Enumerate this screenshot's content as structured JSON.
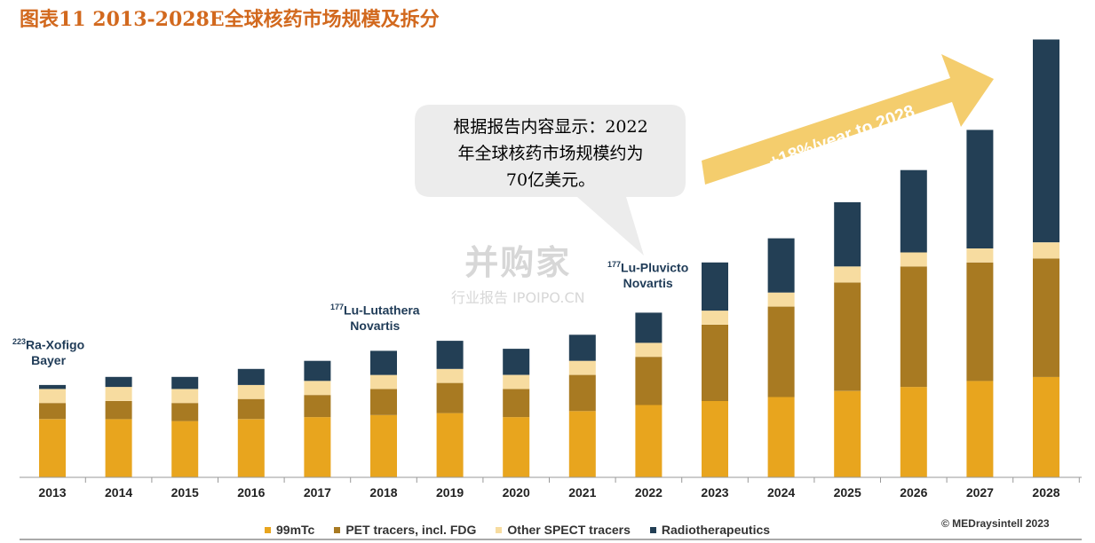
{
  "title": "图表11 2013-2028E全球核药市场规模及拆分",
  "callout": {
    "line1": "根据报告内容显示：2022",
    "line2": "年全球核药市场规模约为",
    "line3": "70亿美元。"
  },
  "arrow_text": "+18%/year to 2028",
  "drug_labels": {
    "xofigo": {
      "sup": "223",
      "name": "Ra-Xofigo",
      "company": "Bayer"
    },
    "lutathera": {
      "sup": "177",
      "name": "Lu-Lutathera",
      "company": "Novartis"
    },
    "pluvicto": {
      "sup": "177",
      "name": "Lu-Pluvicto",
      "company": "Novartis"
    }
  },
  "watermark": {
    "main": "并购家",
    "sub": "行业报告 IPOIPO.CN"
  },
  "copyright": "© MEDraysintell 2023",
  "colors": {
    "99mTc": "#e8a51e",
    "PET": "#a87a22",
    "SPECT": "#f7dca0",
    "Radio": "#233f55",
    "title": "#d2691e",
    "arrow": "#f2c453"
  },
  "chart_data": {
    "type": "bar",
    "stacked": true,
    "categories": [
      "2013",
      "2014",
      "2015",
      "2016",
      "2017",
      "2018",
      "2019",
      "2020",
      "2021",
      "2022",
      "2023",
      "2024",
      "2025",
      "2026",
      "2027",
      "2028"
    ],
    "series": [
      {
        "name": "99mTc",
        "values": [
          2.9,
          2.9,
          2.8,
          2.9,
          3.0,
          3.1,
          3.2,
          3.0,
          3.3,
          3.6,
          3.8,
          4.0,
          4.3,
          4.5,
          4.8,
          5.0
        ]
      },
      {
        "name": "PET tracers, incl. FDG",
        "values": [
          0.8,
          0.9,
          0.9,
          1.0,
          1.1,
          1.3,
          1.5,
          1.4,
          1.8,
          2.4,
          3.8,
          4.5,
          5.4,
          6.0,
          5.9,
          5.9
        ]
      },
      {
        "name": "Other SPECT tracers",
        "values": [
          0.7,
          0.7,
          0.7,
          0.7,
          0.7,
          0.7,
          0.7,
          0.7,
          0.7,
          0.7,
          0.7,
          0.7,
          0.8,
          0.7,
          0.7,
          0.8
        ]
      },
      {
        "name": "Radiotherapeutics",
        "values": [
          0.2,
          0.5,
          0.6,
          0.8,
          1.0,
          1.2,
          1.4,
          1.3,
          1.3,
          1.5,
          2.4,
          2.7,
          3.2,
          4.1,
          5.9,
          10.1
        ]
      }
    ],
    "ylim": [
      0,
      22
    ],
    "grid": false,
    "legend": "bottom"
  }
}
